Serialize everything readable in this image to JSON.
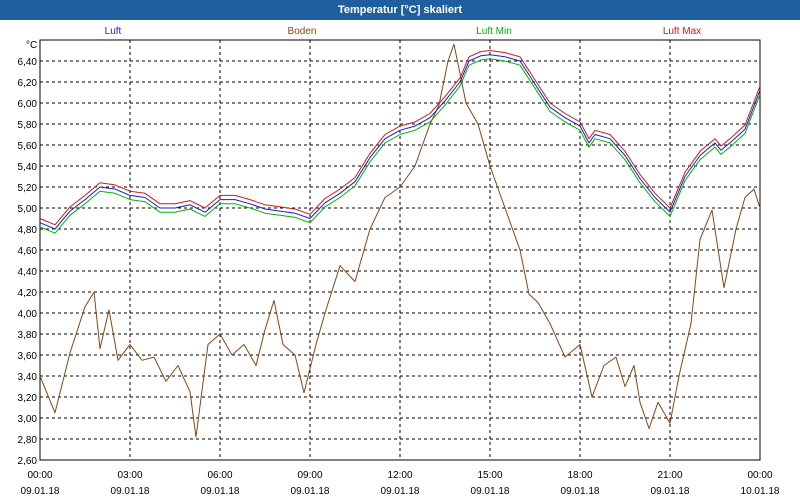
{
  "window": {
    "title": "Temperatur [°C] skaliert"
  },
  "chart_data": {
    "type": "line",
    "title": "Temperatur [°C] skaliert",
    "unit_label": "°C",
    "ylim": [
      2.6,
      6.6
    ],
    "yticks": [
      "2,60",
      "2,80",
      "3,00",
      "3,20",
      "3,40",
      "3,60",
      "3,80",
      "4,00",
      "4,20",
      "4,40",
      "4,60",
      "4,80",
      "5,00",
      "5,20",
      "5,40",
      "5,60",
      "5,80",
      "6,00",
      "6,20",
      "6,40"
    ],
    "x_hours_range": [
      0,
      24
    ],
    "xticks": [
      {
        "time": "00:00",
        "date": "09.01.18"
      },
      {
        "time": "03:00",
        "date": "09.01.18"
      },
      {
        "time": "06:00",
        "date": "09.01.18"
      },
      {
        "time": "09:00",
        "date": "09.01.18"
      },
      {
        "time": "12:00",
        "date": "09.01.18"
      },
      {
        "time": "15:00",
        "date": "09.01.18"
      },
      {
        "time": "18:00",
        "date": "09.01.18"
      },
      {
        "time": "21:00",
        "date": "09.01.18"
      },
      {
        "time": "00:00",
        "date": "10.01.18"
      }
    ],
    "grid": true,
    "series": [
      {
        "name": "Luft",
        "color": "#1c1ccc",
        "points": [
          [
            0,
            4.86
          ],
          [
            0.5,
            4.8
          ],
          [
            1,
            4.97
          ],
          [
            1.5,
            5.08
          ],
          [
            2,
            5.2
          ],
          [
            2.5,
            5.18
          ],
          [
            3,
            5.12
          ],
          [
            3.5,
            5.1
          ],
          [
            4,
            5.0
          ],
          [
            4.5,
            5.0
          ],
          [
            5,
            5.03
          ],
          [
            5.5,
            4.96
          ],
          [
            6,
            5.08
          ],
          [
            6.5,
            5.08
          ],
          [
            7,
            5.04
          ],
          [
            7.5,
            4.99
          ],
          [
            8,
            4.97
          ],
          [
            8.5,
            4.95
          ],
          [
            9,
            4.9
          ],
          [
            9.5,
            5.05
          ],
          [
            10,
            5.14
          ],
          [
            10.5,
            5.25
          ],
          [
            11,
            5.48
          ],
          [
            11.5,
            5.66
          ],
          [
            12,
            5.74
          ],
          [
            12.5,
            5.78
          ],
          [
            13,
            5.86
          ],
          [
            13.5,
            6.02
          ],
          [
            14,
            6.2
          ],
          [
            14.3,
            6.4
          ],
          [
            14.7,
            6.45
          ],
          [
            15,
            6.46
          ],
          [
            15.5,
            6.44
          ],
          [
            16,
            6.4
          ],
          [
            16.5,
            6.18
          ],
          [
            17,
            5.96
          ],
          [
            17.5,
            5.86
          ],
          [
            18,
            5.78
          ],
          [
            18.3,
            5.62
          ],
          [
            18.5,
            5.7
          ],
          [
            19,
            5.66
          ],
          [
            19.5,
            5.5
          ],
          [
            20,
            5.28
          ],
          [
            20.5,
            5.1
          ],
          [
            21,
            4.96
          ],
          [
            21.5,
            5.3
          ],
          [
            22,
            5.5
          ],
          [
            22.5,
            5.62
          ],
          [
            22.7,
            5.55
          ],
          [
            23,
            5.62
          ],
          [
            23.5,
            5.75
          ],
          [
            24,
            6.12
          ]
        ]
      },
      {
        "name": "Boden",
        "color": "#8b4513",
        "points": [
          [
            0,
            3.4
          ],
          [
            0.5,
            3.05
          ],
          [
            1,
            3.62
          ],
          [
            1.5,
            4.06
          ],
          [
            1.8,
            4.2
          ],
          [
            2,
            3.66
          ],
          [
            2.3,
            4.03
          ],
          [
            2.6,
            3.55
          ],
          [
            3,
            3.7
          ],
          [
            3.4,
            3.55
          ],
          [
            3.8,
            3.58
          ],
          [
            4.2,
            3.35
          ],
          [
            4.6,
            3.5
          ],
          [
            5,
            3.25
          ],
          [
            5.2,
            2.82
          ],
          [
            5.6,
            3.7
          ],
          [
            6,
            3.8
          ],
          [
            6.4,
            3.6
          ],
          [
            6.8,
            3.7
          ],
          [
            7.2,
            3.5
          ],
          [
            7.5,
            3.84
          ],
          [
            7.8,
            4.12
          ],
          [
            8.1,
            3.7
          ],
          [
            8.5,
            3.6
          ],
          [
            8.8,
            3.24
          ],
          [
            9.2,
            3.7
          ],
          [
            9.5,
            4.0
          ],
          [
            10,
            4.45
          ],
          [
            10.5,
            4.3
          ],
          [
            11,
            4.8
          ],
          [
            11.5,
            5.1
          ],
          [
            12,
            5.2
          ],
          [
            12.5,
            5.4
          ],
          [
            13,
            5.8
          ],
          [
            13.3,
            5.98
          ],
          [
            13.6,
            6.4
          ],
          [
            13.8,
            6.56
          ],
          [
            14.2,
            6.0
          ],
          [
            14.6,
            5.8
          ],
          [
            15,
            5.4
          ],
          [
            15.5,
            5.0
          ],
          [
            16,
            4.6
          ],
          [
            16.3,
            4.18
          ],
          [
            16.6,
            4.1
          ],
          [
            17,
            3.9
          ],
          [
            17.5,
            3.58
          ],
          [
            18,
            3.7
          ],
          [
            18.4,
            3.2
          ],
          [
            18.8,
            3.5
          ],
          [
            19.2,
            3.58
          ],
          [
            19.5,
            3.3
          ],
          [
            19.8,
            3.5
          ],
          [
            20,
            3.15
          ],
          [
            20.3,
            2.9
          ],
          [
            20.6,
            3.15
          ],
          [
            21,
            2.95
          ],
          [
            21.3,
            3.4
          ],
          [
            21.7,
            3.9
          ],
          [
            22,
            4.7
          ],
          [
            22.4,
            4.98
          ],
          [
            22.8,
            4.24
          ],
          [
            23.2,
            4.8
          ],
          [
            23.5,
            5.1
          ],
          [
            23.8,
            5.18
          ],
          [
            24,
            5.0
          ]
        ]
      },
      {
        "name": "Luft Min",
        "color": "#00b300",
        "points": [
          [
            0,
            4.82
          ],
          [
            0.5,
            4.76
          ],
          [
            1,
            4.93
          ],
          [
            1.5,
            5.04
          ],
          [
            2,
            5.16
          ],
          [
            2.5,
            5.14
          ],
          [
            3,
            5.08
          ],
          [
            3.5,
            5.06
          ],
          [
            4,
            4.96
          ],
          [
            4.5,
            4.96
          ],
          [
            5,
            4.99
          ],
          [
            5.5,
            4.92
          ],
          [
            6,
            5.04
          ],
          [
            6.5,
            5.04
          ],
          [
            7,
            5.0
          ],
          [
            7.5,
            4.95
          ],
          [
            8,
            4.93
          ],
          [
            8.5,
            4.91
          ],
          [
            9,
            4.86
          ],
          [
            9.5,
            5.01
          ],
          [
            10,
            5.1
          ],
          [
            10.5,
            5.21
          ],
          [
            11,
            5.44
          ],
          [
            11.5,
            5.62
          ],
          [
            12,
            5.7
          ],
          [
            12.5,
            5.74
          ],
          [
            13,
            5.82
          ],
          [
            13.5,
            5.98
          ],
          [
            14,
            6.16
          ],
          [
            14.3,
            6.36
          ],
          [
            14.7,
            6.41
          ],
          [
            15,
            6.42
          ],
          [
            15.5,
            6.4
          ],
          [
            16,
            6.36
          ],
          [
            16.5,
            6.14
          ],
          [
            17,
            5.92
          ],
          [
            17.5,
            5.82
          ],
          [
            18,
            5.74
          ],
          [
            18.3,
            5.58
          ],
          [
            18.5,
            5.66
          ],
          [
            19,
            5.62
          ],
          [
            19.5,
            5.46
          ],
          [
            20,
            5.24
          ],
          [
            20.5,
            5.06
          ],
          [
            21,
            4.92
          ],
          [
            21.5,
            5.26
          ],
          [
            22,
            5.46
          ],
          [
            22.5,
            5.58
          ],
          [
            22.7,
            5.51
          ],
          [
            23,
            5.58
          ],
          [
            23.5,
            5.71
          ],
          [
            24,
            6.08
          ]
        ]
      },
      {
        "name": "Luft Max",
        "color": "#cc1c1c",
        "points": [
          [
            0,
            4.9
          ],
          [
            0.5,
            4.84
          ],
          [
            1,
            5.01
          ],
          [
            1.5,
            5.12
          ],
          [
            2,
            5.24
          ],
          [
            2.5,
            5.22
          ],
          [
            3,
            5.16
          ],
          [
            3.5,
            5.14
          ],
          [
            4,
            5.04
          ],
          [
            4.5,
            5.04
          ],
          [
            5,
            5.07
          ],
          [
            5.5,
            5.0
          ],
          [
            6,
            5.12
          ],
          [
            6.5,
            5.12
          ],
          [
            7,
            5.08
          ],
          [
            7.5,
            5.03
          ],
          [
            8,
            5.01
          ],
          [
            8.5,
            4.99
          ],
          [
            9,
            4.94
          ],
          [
            9.5,
            5.09
          ],
          [
            10,
            5.18
          ],
          [
            10.5,
            5.29
          ],
          [
            11,
            5.52
          ],
          [
            11.5,
            5.7
          ],
          [
            12,
            5.78
          ],
          [
            12.5,
            5.82
          ],
          [
            13,
            5.9
          ],
          [
            13.5,
            6.06
          ],
          [
            14,
            6.24
          ],
          [
            14.3,
            6.44
          ],
          [
            14.7,
            6.49
          ],
          [
            15,
            6.5
          ],
          [
            15.5,
            6.48
          ],
          [
            16,
            6.44
          ],
          [
            16.5,
            6.22
          ],
          [
            17,
            6.0
          ],
          [
            17.5,
            5.9
          ],
          [
            18,
            5.82
          ],
          [
            18.3,
            5.66
          ],
          [
            18.5,
            5.74
          ],
          [
            19,
            5.7
          ],
          [
            19.5,
            5.54
          ],
          [
            20,
            5.32
          ],
          [
            20.5,
            5.14
          ],
          [
            21,
            5.0
          ],
          [
            21.5,
            5.34
          ],
          [
            22,
            5.54
          ],
          [
            22.5,
            5.66
          ],
          [
            22.7,
            5.59
          ],
          [
            23,
            5.66
          ],
          [
            23.5,
            5.79
          ],
          [
            24,
            6.16
          ]
        ]
      }
    ]
  }
}
